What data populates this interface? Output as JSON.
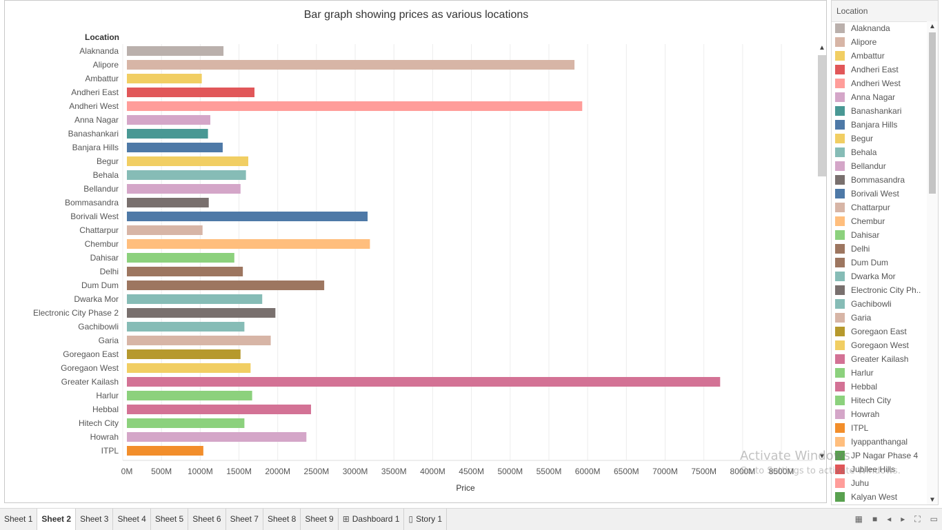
{
  "chart_data": {
    "type": "bar",
    "orientation": "horizontal",
    "title": "Bar graph showing prices as various locations",
    "row_header": "Location",
    "xlabel": "Price",
    "xlim": [
      0,
      8900
    ],
    "x_ticks": [
      "0M",
      "500M",
      "1000M",
      "1500M",
      "2000M",
      "2500M",
      "3000M",
      "3500M",
      "4000M",
      "4500M",
      "5000M",
      "5500M",
      "6000M",
      "6500M",
      "7000M",
      "7500M",
      "8000M",
      "8500M"
    ],
    "categories": [
      "Alaknanda",
      "Alipore",
      "Ambattur",
      "Andheri East",
      "Andheri West",
      "Anna Nagar",
      "Banashankari",
      "Banjara Hills",
      "Begur",
      "Behala",
      "Bellandur",
      "Bommasandra",
      "Borivali West",
      "Chattarpur",
      "Chembur",
      "Dahisar",
      "Delhi",
      "Dum Dum",
      "Dwarka Mor",
      "Electronic City Phase 2",
      "Gachibowli",
      "Garia",
      "Goregaon East",
      "Goregaon West",
      "Greater Kailash",
      "Harlur",
      "Hebbal",
      "Hitech City",
      "Howrah",
      "ITPL"
    ],
    "values": [
      1300,
      5830,
      1020,
      1700,
      5930,
      1130,
      1100,
      1290,
      1620,
      1590,
      1520,
      1110,
      3160,
      1030,
      3190,
      1440,
      1550,
      2600,
      1800,
      1970,
      1570,
      1910,
      1520,
      1650,
      7710,
      1670,
      2430,
      1570,
      2370,
      1040
    ],
    "colors": [
      "#bab0ac",
      "#d7b5a6",
      "#f1ce63",
      "#e15759",
      "#ff9d9a",
      "#d4a6c8",
      "#499894",
      "#4e79a7",
      "#f1ce63",
      "#86bcb6",
      "#d4a6c8",
      "#79706e",
      "#4e79a7",
      "#d7b5a6",
      "#ffbe7d",
      "#8cd17d",
      "#9d7660",
      "#9d7660",
      "#86bcb6",
      "#79706e",
      "#86bcb6",
      "#d7b5a6",
      "#b6992d",
      "#f1ce63",
      "#d37295",
      "#8cd17d",
      "#d37295",
      "#8cd17d",
      "#d4a6c8",
      "#f28e2b"
    ],
    "grid": true,
    "legend": "right"
  },
  "legend": {
    "title": "Location",
    "items": [
      {
        "label": "Alaknanda",
        "color": "#bab0ac"
      },
      {
        "label": "Alipore",
        "color": "#d7b5a6"
      },
      {
        "label": "Ambattur",
        "color": "#f1ce63"
      },
      {
        "label": "Andheri East",
        "color": "#e15759"
      },
      {
        "label": "Andheri West",
        "color": "#ff9d9a"
      },
      {
        "label": "Anna Nagar",
        "color": "#d4a6c8"
      },
      {
        "label": "Banashankari",
        "color": "#499894"
      },
      {
        "label": "Banjara Hills",
        "color": "#4e79a7"
      },
      {
        "label": "Begur",
        "color": "#f1ce63"
      },
      {
        "label": "Behala",
        "color": "#86bcb6"
      },
      {
        "label": "Bellandur",
        "color": "#d4a6c8"
      },
      {
        "label": "Bommasandra",
        "color": "#79706e"
      },
      {
        "label": "Borivali West",
        "color": "#4e79a7"
      },
      {
        "label": "Chattarpur",
        "color": "#d7b5a6"
      },
      {
        "label": "Chembur",
        "color": "#ffbe7d"
      },
      {
        "label": "Dahisar",
        "color": "#8cd17d"
      },
      {
        "label": "Delhi",
        "color": "#9d7660"
      },
      {
        "label": "Dum Dum",
        "color": "#9d7660"
      },
      {
        "label": "Dwarka Mor",
        "color": "#86bcb6"
      },
      {
        "label": "Electronic City Ph..",
        "color": "#79706e"
      },
      {
        "label": "Gachibowli",
        "color": "#86bcb6"
      },
      {
        "label": "Garia",
        "color": "#d7b5a6"
      },
      {
        "label": "Goregaon East",
        "color": "#b6992d"
      },
      {
        "label": "Goregaon West",
        "color": "#f1ce63"
      },
      {
        "label": "Greater Kailash",
        "color": "#d37295"
      },
      {
        "label": "Harlur",
        "color": "#8cd17d"
      },
      {
        "label": "Hebbal",
        "color": "#d37295"
      },
      {
        "label": "Hitech City",
        "color": "#8cd17d"
      },
      {
        "label": "Howrah",
        "color": "#d4a6c8"
      },
      {
        "label": "ITPL",
        "color": "#f28e2b"
      },
      {
        "label": "Iyappanthangal",
        "color": "#ffbe7d"
      },
      {
        "label": "JP Nagar Phase 4",
        "color": "#59a14f"
      },
      {
        "label": "Jubilee Hills",
        "color": "#e15759"
      },
      {
        "label": "Juhu",
        "color": "#ff9d9a"
      },
      {
        "label": "Kalyan West",
        "color": "#59a14f"
      }
    ]
  },
  "watermark": {
    "line1": "Activate Windows",
    "line2": "Go to Settings to activate Windows."
  },
  "tabs": [
    {
      "label": "Sheet 1",
      "active": false
    },
    {
      "label": "Sheet 2",
      "active": true
    },
    {
      "label": "Sheet 3",
      "active": false
    },
    {
      "label": "Sheet 4",
      "active": false
    },
    {
      "label": "Sheet 5",
      "active": false
    },
    {
      "label": "Sheet 6",
      "active": false
    },
    {
      "label": "Sheet 7",
      "active": false
    },
    {
      "label": "Sheet 8",
      "active": false
    },
    {
      "label": "Sheet 9",
      "active": false
    },
    {
      "label": "Dashboard 1",
      "icon": "dashboard-icon",
      "active": false
    },
    {
      "label": "Story 1",
      "icon": "story-icon",
      "active": false
    }
  ]
}
